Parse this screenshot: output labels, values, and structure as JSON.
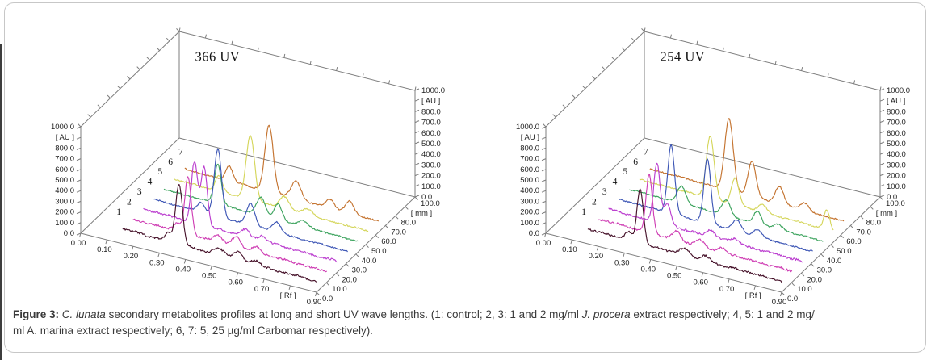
{
  "page": {
    "caption": {
      "lines": [
        [
          {
            "text": "Figure 3:",
            "bold": true
          },
          {
            "text": " "
          },
          {
            "text": "C. lunata",
            "italic": true
          },
          {
            "text": " secondary metabolites profiles at long and short UV wave lengths. (1: control; 2, 3: 1 and 2 mg/ml "
          },
          {
            "text": "J. procera",
            "italic": true
          },
          {
            "text": " extract respectively; 4, 5: 1 and 2 mg/"
          }
        ],
        [
          {
            "text": "ml A. marina extract respectively; 6, 7: 5, 25 µg/ml Carbomar respectively)."
          }
        ]
      ]
    }
  },
  "chart_data": [
    {
      "type": "line",
      "variant": "3d_waterfall_densitogram",
      "title": "366 UV",
      "xlabel": "[ Rf ]",
      "ylabel": "[ AU ]",
      "zlabel": "[ mm ]",
      "x_range": [
        0.0,
        0.9
      ],
      "y_range": [
        0.0,
        1000.0
      ],
      "z_range": [
        0.0,
        100.0
      ],
      "grid": false,
      "legend": "trace numbers 1-7 at line starts",
      "x_ticks": [
        "0.00",
        "0.10",
        "0.20",
        "0.30",
        "0.40",
        "0.50",
        "0.60",
        "0.70",
        "[ Rf ]",
        "0.90"
      ],
      "y_ticks": [
        "0.0",
        "100.0",
        "200.0",
        "300.0",
        "400.0",
        "500.0",
        "600.0",
        "700.0",
        "800.0",
        "[ AU ]",
        "1000.0"
      ],
      "z_ticks": [
        "0.0",
        "10.0",
        "20.0",
        "30.0",
        "40.0",
        "50.0",
        "60.0",
        "70.0",
        "80.0",
        "[ mm ]",
        "100.0"
      ],
      "axis_color": "#7d7d7d",
      "series": [
        {
          "label": "1",
          "color": "#47132b",
          "depth_mm": 8,
          "base": [
            58,
            10
          ],
          "noise": 12,
          "peaks": [
            [
              0.305,
              80,
              0.012
            ],
            [
              0.345,
              560,
              0.013
            ],
            [
              0.5,
              60,
              0.02
            ],
            [
              0.57,
              75,
              0.016
            ],
            [
              0.64,
              40,
              0.018
            ]
          ]
        },
        {
          "label": "2",
          "color": "#cf3fb4",
          "depth_mm": 18.5,
          "base": [
            55,
            10
          ],
          "noise": 12,
          "peaks": [
            [
              0.3,
              70,
              0.012
            ],
            [
              0.34,
              535,
              0.012
            ],
            [
              0.455,
              70,
              0.016
            ],
            [
              0.525,
              95,
              0.015
            ],
            [
              0.6,
              50,
              0.016
            ]
          ]
        },
        {
          "label": "3",
          "color": "#bb3ecf",
          "depth_mm": 29,
          "base": [
            55,
            10
          ],
          "noise": 12,
          "peaks": [
            [
              0.325,
              575,
              0.012
            ],
            [
              0.362,
              545,
              0.012
            ],
            [
              0.52,
              70,
              0.016
            ],
            [
              0.585,
              50,
              0.016
            ]
          ]
        },
        {
          "label": "4",
          "color": "#3d56b5",
          "depth_mm": 39.5,
          "base": [
            52,
            10
          ],
          "noise": 8,
          "peaks": [
            [
              0.31,
              90,
              0.014
            ],
            [
              0.375,
              630,
              0.014
            ],
            [
              0.5,
              205,
              0.016
            ],
            [
              0.6,
              95,
              0.016
            ]
          ]
        },
        {
          "label": "5",
          "color": "#3ea45f",
          "depth_mm": 50,
          "base": [
            52,
            12
          ],
          "noise": 8,
          "peaks": [
            [
              0.335,
              375,
              0.013
            ],
            [
              0.5,
              170,
              0.016
            ],
            [
              0.565,
              150,
              0.015
            ],
            [
              0.66,
              55,
              0.018
            ]
          ]
        },
        {
          "label": "6",
          "color": "#d5d65c",
          "depth_mm": 60.5,
          "base": [
            52,
            12
          ],
          "noise": 8,
          "peaks": [
            [
              0.3,
              145,
              0.013
            ],
            [
              0.42,
              600,
              0.016
            ],
            [
              0.55,
              115,
              0.018
            ],
            [
              0.64,
              55,
              0.018
            ]
          ]
        },
        {
          "label": "7",
          "color": "#c4732f",
          "depth_mm": 71,
          "base": [
            55,
            12
          ],
          "noise": 8,
          "peaks": [
            [
              0.3,
              140,
              0.013
            ],
            [
              0.452,
              620,
              0.016
            ],
            [
              0.555,
              165,
              0.018
            ],
            [
              0.685,
              85,
              0.016
            ],
            [
              0.76,
              115,
              0.015
            ]
          ]
        }
      ]
    },
    {
      "type": "line",
      "variant": "3d_waterfall_densitogram",
      "title": "254 UV",
      "xlabel": "[ Rf ]",
      "ylabel": "[ AU ]",
      "zlabel": "[ mm ]",
      "x_range": [
        0.0,
        0.9
      ],
      "y_range": [
        0.0,
        1000.0
      ],
      "z_range": [
        0.0,
        100.0
      ],
      "grid": false,
      "legend": "trace numbers 1-7 at line starts",
      "x_ticks": [
        "0.00",
        "0.10",
        "0.20",
        "0.30",
        "0.40",
        "0.50",
        "0.60",
        "0.70",
        "[ Rf ]",
        "0.90"
      ],
      "y_ticks": [
        "0.0",
        "100.0",
        "200.0",
        "300.0",
        "400.0",
        "500.0",
        "600.0",
        "700.0",
        "800.0",
        "[ AU ]",
        "1000.0"
      ],
      "z_ticks": [
        "0.0",
        "10.0",
        "20.0",
        "30.0",
        "40.0",
        "50.0",
        "60.0",
        "70.0",
        "80.0",
        "[ mm ]",
        "100.0"
      ],
      "axis_color": "#7d7d7d",
      "series": [
        {
          "label": "1",
          "color": "#47132b",
          "depth_mm": 8,
          "base": [
            58,
            10
          ],
          "noise": 12,
          "peaks": [
            [
              0.285,
              70,
              0.012
            ],
            [
              0.33,
              515,
              0.012
            ],
            [
              0.5,
              60,
              0.018
            ],
            [
              0.58,
              45,
              0.016
            ]
          ]
        },
        {
          "label": "2",
          "color": "#cf3fb4",
          "depth_mm": 18.5,
          "base": [
            55,
            10
          ],
          "noise": 12,
          "peaks": [
            [
              0.325,
              545,
              0.012
            ],
            [
              0.43,
              85,
              0.015
            ],
            [
              0.52,
              65,
              0.016
            ],
            [
              0.6,
              40,
              0.016
            ]
          ]
        },
        {
          "label": "3",
          "color": "#bb3ecf",
          "depth_mm": 29,
          "base": [
            55,
            10
          ],
          "noise": 12,
          "peaks": [
            [
              0.315,
              555,
              0.012
            ],
            [
              0.355,
              195,
              0.013
            ],
            [
              0.52,
              60,
              0.016
            ],
            [
              0.61,
              45,
              0.016
            ]
          ]
        },
        {
          "label": "4",
          "color": "#3d56b5",
          "depth_mm": 39.5,
          "base": [
            52,
            10
          ],
          "noise": 8,
          "peaks": [
            [
              0.33,
              645,
              0.013
            ],
            [
              0.468,
              605,
              0.013
            ],
            [
              0.58,
              105,
              0.016
            ],
            [
              0.66,
              60,
              0.016
            ]
          ]
        },
        {
          "label": "5",
          "color": "#3ea45f",
          "depth_mm": 50,
          "base": [
            52,
            12
          ],
          "noise": 8,
          "peaks": [
            [
              0.33,
              165,
              0.016
            ],
            [
              0.5,
              145,
              0.016
            ],
            [
              0.62,
              115,
              0.014
            ],
            [
              0.7,
              45,
              0.016
            ]
          ]
        },
        {
          "label": "6",
          "color": "#d5d65c",
          "depth_mm": 60.5,
          "base": [
            52,
            12
          ],
          "noise": 8,
          "peaks": [
            [
              0.4,
              585,
              0.015
            ],
            [
              0.495,
              255,
              0.014
            ],
            [
              0.6,
              75,
              0.016
            ],
            [
              0.845,
              185,
              0.011
            ]
          ]
        },
        {
          "label": "7",
          "color": "#c4732f",
          "depth_mm": 71,
          "base": [
            55,
            12
          ],
          "noise": 8,
          "peaks": [
            [
              0.432,
              675,
              0.016
            ],
            [
              0.52,
              330,
              0.015
            ],
            [
              0.625,
              165,
              0.016
            ],
            [
              0.72,
              75,
              0.016
            ]
          ]
        }
      ]
    }
  ]
}
